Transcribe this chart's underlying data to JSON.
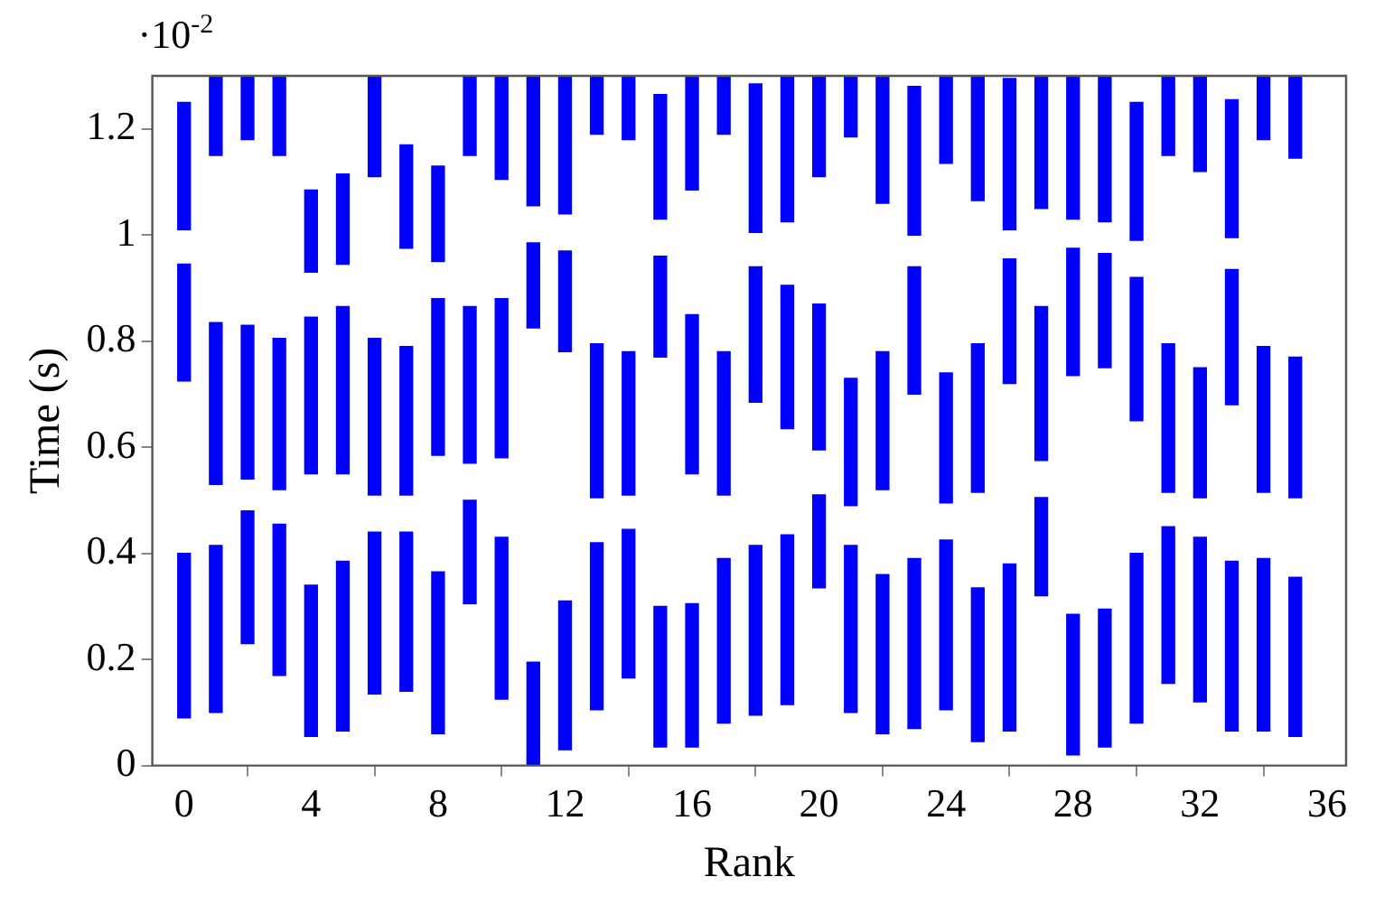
{
  "chart_data": {
    "type": "bar",
    "xlabel": "Rank",
    "ylabel": "Time (s)",
    "annotations": [
      "·10$^{-2}$"
    ],
    "x": [
      0,
      1,
      2,
      3,
      4,
      5,
      6,
      7,
      8,
      9,
      10,
      11,
      12,
      13,
      14,
      15,
      16,
      17,
      18,
      19,
      20,
      21,
      22,
      23,
      24,
      25,
      26,
      27,
      28,
      29,
      30,
      31,
      32,
      33,
      34,
      35
    ],
    "xlim": [
      -1,
      36.6
    ],
    "xticks": [
      0,
      4,
      8,
      12,
      16,
      20,
      24,
      28,
      32,
      36
    ],
    "ylim": [
      0,
      1.3
    ],
    "yticks": [
      0,
      0.2,
      0.4,
      0.6,
      0.8,
      1,
      1.2
    ],
    "grid": false,
    "legend": false,
    "series": [
      {
        "color": "#0000ff",
        "base": [
          0.09,
          0.1,
          0.23,
          0.17,
          0.055,
          0.065,
          0.135,
          0.14,
          0.06,
          0.305,
          0.125,
          0,
          0.03,
          0.105,
          0.165,
          0.035,
          0.035,
          0.08,
          0.095,
          0.115,
          0.335,
          0.1,
          0.06,
          0.07,
          0.105,
          0.045,
          0.065,
          0.32,
          0.02,
          0.035,
          0.08,
          0.155,
          0.12,
          0.065,
          0.065,
          0.055
        ],
        "values": [
          0.31,
          0.315,
          0.25,
          0.285,
          0.285,
          0.32,
          0.305,
          0.3,
          0.305,
          0.195,
          0.305,
          0.195,
          0.28,
          0.315,
          0.28,
          0.265,
          0.27,
          0.31,
          0.32,
          0.32,
          0.175,
          0.315,
          0.3,
          0.32,
          0.32,
          0.29,
          0.315,
          0.185,
          0.265,
          0.26,
          0.32,
          0.295,
          0.31,
          0.32,
          0.325,
          0.3
        ]
      },
      {
        "color": "#0000ff",
        "base": [
          0.725,
          0.53,
          0.54,
          0.52,
          0.55,
          0.55,
          0.51,
          0.51,
          0.585,
          0.57,
          0.58,
          0.825,
          0.78,
          0.505,
          0.51,
          0.77,
          0.55,
          0.51,
          0.685,
          0.635,
          0.595,
          0.49,
          0.52,
          0.7,
          0.495,
          0.515,
          0.72,
          0.575,
          0.735,
          0.75,
          0.65,
          0.515,
          0.505,
          0.68,
          0.515,
          0.505
        ],
        "values": [
          0.22,
          0.305,
          0.29,
          0.285,
          0.295,
          0.315,
          0.295,
          0.28,
          0.295,
          0.295,
          0.3,
          0.16,
          0.19,
          0.29,
          0.27,
          0.19,
          0.3,
          0.27,
          0.255,
          0.27,
          0.275,
          0.24,
          0.26,
          0.24,
          0.245,
          0.28,
          0.235,
          0.29,
          0.24,
          0.215,
          0.27,
          0.28,
          0.245,
          0.255,
          0.275,
          0.265
        ]
      },
      {
        "color": "#0000ff",
        "base": [
          1.01,
          1.15,
          1.18,
          1.15,
          0.93,
          0.945,
          1.11,
          0.975,
          0.95,
          1.15,
          1.105,
          1.055,
          1.04,
          1.19,
          1.18,
          1.03,
          1.085,
          1.19,
          1.005,
          1.025,
          1.11,
          1.185,
          1.06,
          1,
          1.135,
          1.065,
          1.01,
          1.05,
          1.03,
          1.025,
          0.99,
          1.15,
          1.12,
          0.995,
          1.18,
          1.145
        ],
        "values": [
          0.24,
          0.15,
          0.12,
          0.15,
          0.155,
          0.17,
          0.19,
          0.195,
          0.18,
          0.15,
          0.195,
          0.245,
          0.26,
          0.11,
          0.12,
          0.235,
          0.215,
          0.11,
          0.28,
          0.275,
          0.19,
          0.115,
          0.24,
          0.28,
          0.165,
          0.235,
          0.285,
          0.25,
          0.27,
          0.275,
          0.26,
          0.15,
          0.18,
          0.26,
          0.12,
          0.155
        ]
      }
    ]
  }
}
